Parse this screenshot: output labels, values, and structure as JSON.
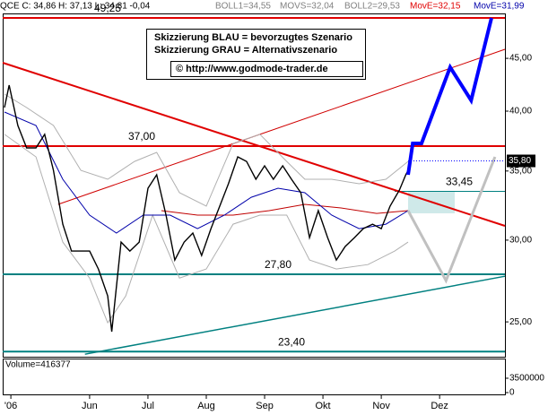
{
  "chart_data": {
    "type": "line",
    "log_y": true,
    "header": [
      {
        "text": "QCE C: 34,86 H: 37,13 L: 34,81 -0,04",
        "color": "#000000"
      },
      {
        "text": "BOLL1=34,55",
        "color": "#808080"
      },
      {
        "text": "MOVS=32,04",
        "color": "#808080"
      },
      {
        "text": "BOLL2=29,53",
        "color": "#808080"
      },
      {
        "text": "MovE=32,15",
        "color": "#e00000"
      },
      {
        "text": "MovE=31,99",
        "color": "#0000aa"
      }
    ],
    "annotations": [
      "Skizzierung BLAU = bevorzugtes Szenario",
      "Skizzierung GRAU = Alternativszenario",
      "© http://www.godmode-trader.de"
    ],
    "xlim": [
      4.51,
      13.12
    ],
    "xticks": [
      {
        "value": 4.65,
        "label": "'06"
      },
      {
        "value": 6,
        "label": "Jun"
      },
      {
        "value": 7,
        "label": "Jul"
      },
      {
        "value": 8,
        "label": "Aug"
      },
      {
        "value": 9,
        "label": "Sep"
      },
      {
        "value": 10,
        "label": "Okt"
      },
      {
        "value": 11,
        "label": "Nov"
      },
      {
        "value": 12,
        "label": "Dez"
      }
    ],
    "ylim": [
      23.13,
      49.74
    ],
    "yticks": [
      {
        "value": 25,
        "label": "25,00"
      },
      {
        "value": 30,
        "label": "30,00"
      },
      {
        "value": 35,
        "label": "35,00"
      },
      {
        "value": 40,
        "label": "40,00"
      },
      {
        "value": 45,
        "label": "45,00"
      }
    ],
    "series": [
      {
        "color": "#b0b0b0",
        "x": [
          4.54,
          4.92,
          5.38,
          5.85,
          6.31,
          6.77,
          7.15,
          7.54,
          8,
          8.46,
          8.92,
          9.38,
          9.69,
          10.15,
          10.62,
          11.08,
          11.46
        ],
        "values": [
          41.55,
          40.32,
          38.74,
          35.05,
          34.36,
          35.76,
          36.49,
          33.35,
          32.36,
          37.22,
          37.98,
          35.76,
          34.36,
          34.36,
          34.02,
          34.36,
          35.76
        ]
      },
      {
        "color": "#b0b0b0",
        "x": [
          4.54,
          5.08,
          5.54,
          6,
          6.31,
          6.62,
          7.08,
          7.54,
          8,
          8.46,
          8.92,
          9.38,
          9.77,
          10.23,
          10.77,
          11.23,
          11.46
        ],
        "values": [
          37.98,
          36.12,
          29.87,
          27.57,
          24.95,
          26.49,
          31.72,
          27.57,
          28.13,
          31.09,
          31.72,
          31.72,
          28.7,
          28.13,
          28.41,
          29.28,
          29.87
        ]
      },
      {
        "color": "#c00000",
        "x": [
          7.23,
          7.85,
          8.46,
          9.08,
          9.69,
          10.31,
          10.92,
          11.46
        ],
        "values": [
          32.04,
          31.72,
          31.72,
          32.04,
          32.49,
          32.23,
          31.84,
          32.04
        ]
      },
      {
        "color": "#0000aa",
        "x": [
          4.54,
          5.08,
          5.54,
          6,
          6.46,
          6.92,
          7.38,
          7.85,
          8.31,
          8.77,
          9.23,
          9.69,
          10.15,
          10.62,
          11.08,
          11.46
        ],
        "values": [
          39.92,
          38.74,
          34.36,
          31.72,
          30.48,
          31.72,
          31.72,
          30.78,
          31.72,
          33.01,
          33.68,
          33.35,
          31.72,
          30.78,
          31.09,
          32.04
        ]
      },
      {
        "color": "#000000",
        "x": [
          4.54,
          4.62,
          4.77,
          4.92,
          5.08,
          5.23,
          5.38,
          5.54,
          5.69,
          5.85,
          6,
          6.15,
          6.31,
          6.38,
          6.54,
          6.69,
          6.85,
          7,
          7.15,
          7.31,
          7.46,
          7.62,
          7.77,
          7.92,
          8.08,
          8.23,
          8.38,
          8.54,
          8.69,
          8.85,
          9,
          9.15,
          9.31,
          9.46,
          9.62,
          9.77,
          9.92,
          10.08,
          10.23,
          10.38,
          10.54,
          10.69,
          10.85,
          11,
          11.15,
          11.31,
          11.42,
          11.46
        ],
        "values": [
          40.32,
          42.39,
          38.74,
          36.85,
          36.85,
          37.98,
          35.05,
          31.09,
          29.28,
          29.28,
          29.28,
          28.13,
          26.49,
          24.46,
          29.87,
          29.28,
          29.87,
          33.68,
          34.71,
          31.72,
          28.7,
          29.87,
          30.48,
          28.99,
          30.78,
          32.36,
          34.02,
          36.12,
          35.76,
          34.36,
          35.41,
          34.36,
          35.41,
          34.36,
          33.35,
          30.17,
          32.04,
          30.17,
          28.7,
          29.57,
          30.17,
          30.78,
          31.09,
          30.78,
          32.36,
          33.54,
          34.71,
          35.05
        ]
      }
    ],
    "trendlines": [
      {
        "color": "#e00000",
        "x": [
          4.51,
          13.12
        ],
        "values": [
          44.56,
          30.97
        ]
      },
      {
        "color": "#d00000",
        "x": [
          5.46,
          13.12
        ],
        "values": [
          32.49,
          45.92
        ]
      },
      {
        "color": "#008080",
        "x": [
          5.92,
          13.12
        ],
        "values": [
          23.26,
          27.68
        ]
      }
    ],
    "scenarios": [
      {
        "color": "#c0c0c0",
        "x": [
          11.46,
          12.11,
          12.95
        ],
        "values": [
          32.04,
          27.41,
          36.12
        ]
      },
      {
        "color": "#0000ff",
        "x": [
          11.46,
          11.54,
          11.69,
          12.18,
          12.54,
          12.89
        ],
        "values": [
          34.71,
          37.22,
          37.22,
          44.12,
          40.97,
          49.25
        ]
      }
    ],
    "levels": [
      {
        "value": 49.25,
        "label": "49,25",
        "color": "#e00000"
      },
      {
        "value": 37,
        "label": "37,00",
        "color": "#e00000"
      },
      {
        "value": 33.45,
        "label": "33,45",
        "color": "#008080"
      },
      {
        "value": 27.8,
        "label": "27,80",
        "color": "#008080"
      },
      {
        "value": 23.4,
        "label": "23,40",
        "color": "#008080"
      }
    ],
    "price_marker": {
      "value": 35.8,
      "label": "35,80"
    },
    "volume": {
      "label": "Volume=416377",
      "ylim": [
        0,
        8300000
      ],
      "yticks": [
        0,
        3500000
      ]
    }
  }
}
